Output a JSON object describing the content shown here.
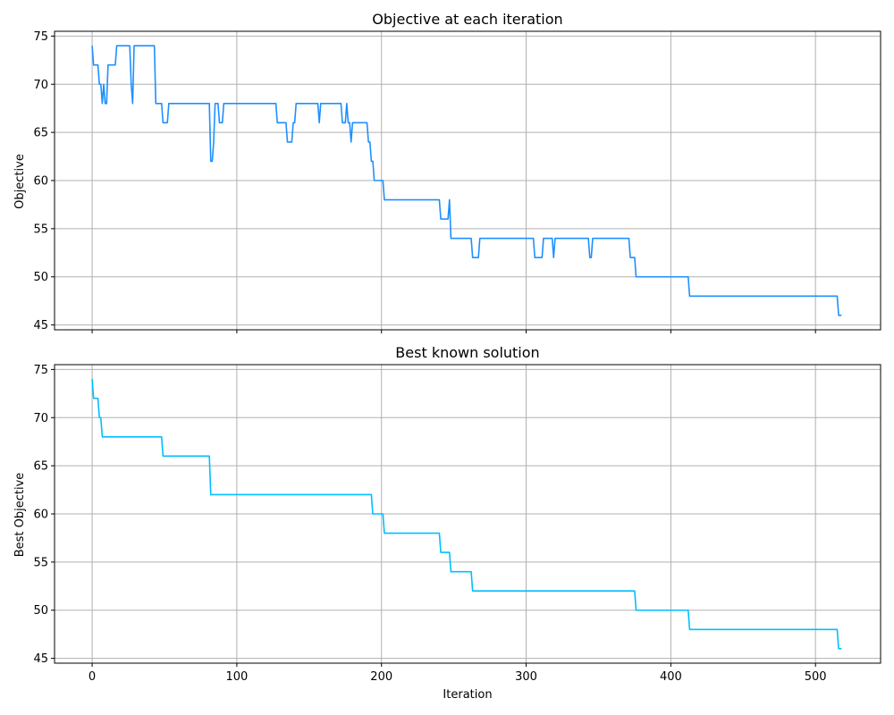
{
  "chart_data": [
    {
      "type": "line",
      "title": "Objective at each iteration",
      "xlabel": "",
      "ylabel": "Objective",
      "xlim": [
        -26,
        545
      ],
      "ylim": [
        44.5,
        75.5
      ],
      "xticks": [
        0,
        100,
        200,
        300,
        400,
        500
      ],
      "yticks": [
        45,
        50,
        55,
        60,
        65,
        70,
        75
      ],
      "show_xticklabels": false,
      "grid": true,
      "series": [
        {
          "color": "#1e90ff",
          "points": [
            [
              0,
              74
            ],
            [
              1,
              72
            ],
            [
              4,
              72
            ],
            [
              5,
              70
            ],
            [
              6,
              70
            ],
            [
              7,
              68
            ],
            [
              8,
              70
            ],
            [
              9,
              68
            ],
            [
              10,
              68
            ],
            [
              11,
              72
            ],
            [
              16,
              72
            ],
            [
              17,
              74
            ],
            [
              26,
              74
            ],
            [
              27,
              70
            ],
            [
              28,
              68
            ],
            [
              29,
              74
            ],
            [
              43,
              74
            ],
            [
              44,
              68
            ],
            [
              48,
              68
            ],
            [
              49,
              66
            ],
            [
              52,
              66
            ],
            [
              53,
              68
            ],
            [
              81,
              68
            ],
            [
              82,
              62
            ],
            [
              83,
              62
            ],
            [
              84,
              64
            ],
            [
              85,
              68
            ],
            [
              87,
              68
            ],
            [
              88,
              66
            ],
            [
              90,
              66
            ],
            [
              91,
              68
            ],
            [
              127,
              68
            ],
            [
              128,
              66
            ],
            [
              134,
              66
            ],
            [
              135,
              64
            ],
            [
              138,
              64
            ],
            [
              139,
              66
            ],
            [
              140,
              66
            ],
            [
              141,
              68
            ],
            [
              156,
              68
            ],
            [
              157,
              66
            ],
            [
              158,
              68
            ],
            [
              172,
              68
            ],
            [
              173,
              66
            ],
            [
              175,
              66
            ],
            [
              176,
              68
            ],
            [
              177,
              66
            ],
            [
              178,
              66
            ],
            [
              179,
              64
            ],
            [
              180,
              66
            ],
            [
              190,
              66
            ],
            [
              191,
              64
            ],
            [
              192,
              64
            ],
            [
              193,
              62
            ],
            [
              194,
              62
            ],
            [
              195,
              60
            ],
            [
              201,
              60
            ],
            [
              202,
              58
            ],
            [
              240,
              58
            ],
            [
              241,
              56
            ],
            [
              246,
              56
            ],
            [
              247,
              58
            ],
            [
              248,
              54
            ],
            [
              262,
              54
            ],
            [
              263,
              52
            ],
            [
              267,
              52
            ],
            [
              268,
              54
            ],
            [
              305,
              54
            ],
            [
              306,
              52
            ],
            [
              311,
              52
            ],
            [
              312,
              54
            ],
            [
              318,
              54
            ],
            [
              319,
              52
            ],
            [
              320,
              54
            ],
            [
              343,
              54
            ],
            [
              344,
              52
            ],
            [
              345,
              52
            ],
            [
              346,
              54
            ],
            [
              371,
              54
            ],
            [
              372,
              52
            ],
            [
              375,
              52
            ],
            [
              376,
              50
            ],
            [
              412,
              50
            ],
            [
              413,
              48
            ],
            [
              515,
              48
            ],
            [
              516,
              46
            ],
            [
              518,
              46
            ]
          ]
        }
      ]
    },
    {
      "type": "line",
      "title": "Best known solution",
      "xlabel": "Iteration",
      "ylabel": "Best Objective",
      "xlim": [
        -26,
        545
      ],
      "ylim": [
        44.5,
        75.5
      ],
      "xticks": [
        0,
        100,
        200,
        300,
        400,
        500
      ],
      "yticks": [
        45,
        50,
        55,
        60,
        65,
        70,
        75
      ],
      "show_xticklabels": true,
      "grid": true,
      "series": [
        {
          "color": "#00bfff",
          "points": [
            [
              0,
              74
            ],
            [
              1,
              72
            ],
            [
              4,
              72
            ],
            [
              5,
              70
            ],
            [
              6,
              70
            ],
            [
              7,
              68
            ],
            [
              48,
              68
            ],
            [
              49,
              66
            ],
            [
              81,
              66
            ],
            [
              82,
              62
            ],
            [
              193,
              62
            ],
            [
              194,
              60
            ],
            [
              201,
              60
            ],
            [
              202,
              58
            ],
            [
              240,
              58
            ],
            [
              241,
              56
            ],
            [
              247,
              56
            ],
            [
              248,
              54
            ],
            [
              262,
              54
            ],
            [
              263,
              52
            ],
            [
              375,
              52
            ],
            [
              376,
              50
            ],
            [
              412,
              50
            ],
            [
              413,
              48
            ],
            [
              515,
              48
            ],
            [
              516,
              46
            ],
            [
              518,
              46
            ]
          ]
        }
      ]
    }
  ],
  "style": {
    "grid_color": "#b0b0b0",
    "axis_color": "#000000"
  }
}
